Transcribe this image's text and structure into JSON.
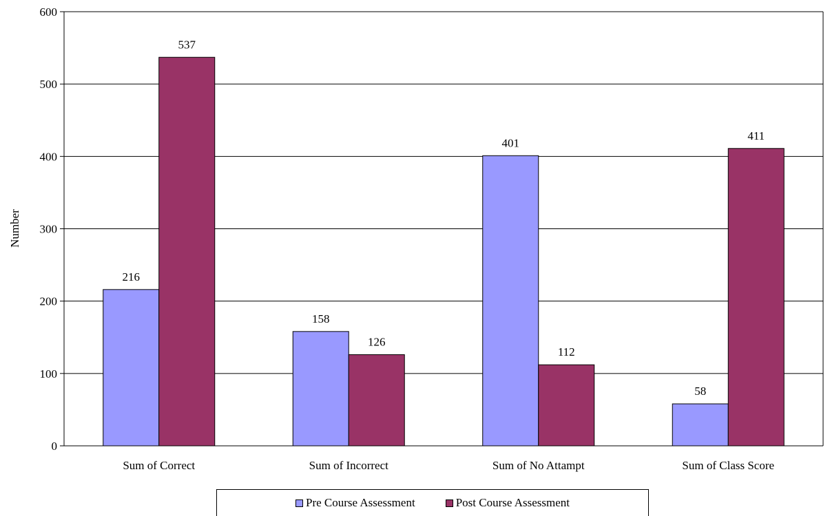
{
  "chart_data": {
    "type": "bar",
    "categories": [
      "Sum of Correct",
      "Sum of Incorrect",
      "Sum of No Attampt",
      "Sum of Class Score"
    ],
    "series": [
      {
        "name": "Pre Course Assessment",
        "values": [
          216,
          158,
          401,
          58
        ],
        "color": "#9999ff"
      },
      {
        "name": "Post Course Assessment",
        "values": [
          537,
          126,
          112,
          411
        ],
        "color": "#993366"
      }
    ],
    "title": "",
    "xlabel": "",
    "ylabel": "Number",
    "ylim": [
      0,
      600
    ],
    "yticks": [
      0,
      100,
      200,
      300,
      400,
      500,
      600
    ],
    "grid": true,
    "legend_position": "bottom"
  }
}
